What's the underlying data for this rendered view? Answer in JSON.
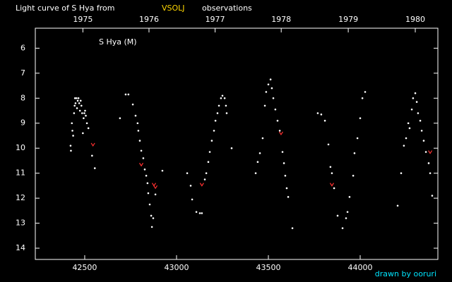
{
  "chart_data": {
    "type": "scatter",
    "title_prefix": "Light curve of S Hya from",
    "title_source": "VSOLJ",
    "title_suffix": "observations",
    "label": "S Hya (M)",
    "credit": "drawn by ooruri",
    "xlim": [
      42231,
      44423
    ],
    "ylim": [
      14.45,
      5.2
    ],
    "xticks": [
      42500,
      43000,
      43500,
      44000
    ],
    "yticks": [
      6,
      7,
      8,
      9,
      10,
      11,
      12,
      13,
      14
    ],
    "x2ticks": [
      {
        "value": 42490,
        "label": "1975"
      },
      {
        "value": 42850,
        "label": "1976"
      },
      {
        "value": 43210,
        "label": "1977"
      },
      {
        "value": 43570,
        "label": "1978"
      },
      {
        "value": 43935,
        "label": "1979"
      },
      {
        "value": 44300,
        "label": "1980"
      }
    ],
    "grid": false,
    "series": [
      {
        "color": "#ffffff",
        "marker": "dot",
        "x": [
          42423,
          42425,
          42430,
          42433,
          42437,
          42442,
          42445,
          42447,
          42450,
          42455,
          42458,
          42462,
          42466,
          42470,
          42474,
          42478,
          42482,
          42486,
          42490,
          42494,
          42498,
          42502,
          42506,
          42512,
          42520,
          42540,
          42555,
          42692,
          42723,
          42738,
          42762,
          42777,
          42788,
          42792,
          42800,
          42808,
          42819,
          42827,
          42835,
          42842,
          42846,
          42854,
          42862,
          42866,
          42873,
          42885,
          42923,
          43058,
          43077,
          43085,
          43108,
          43127,
          43138,
          43154,
          43162,
          43173,
          43181,
          43192,
          43204,
          43212,
          43223,
          43231,
          43242,
          43250,
          43262,
          43269,
          43273,
          43300,
          43431,
          43442,
          43454,
          43469,
          43481,
          43488,
          43500,
          43512,
          43519,
          43527,
          43538,
          43550,
          43562,
          43577,
          43585,
          43592,
          43600,
          43608,
          43631,
          43769,
          43788,
          43808,
          43827,
          43838,
          43846,
          43858,
          43877,
          43904,
          43923,
          43931,
          43942,
          43962,
          43969,
          43985,
          44000,
          44012,
          44027,
          44204,
          44223,
          44238,
          44250,
          44262,
          44269,
          44281,
          44288,
          44300,
          44308,
          44315,
          44327,
          44335,
          44346,
          44358,
          44373,
          44381,
          44392
        ],
        "values": [
          9.9,
          10.1,
          9.0,
          9.3,
          9.5,
          8.6,
          8.3,
          8.0,
          8.2,
          8.0,
          8.4,
          8.1,
          8.0,
          8.2,
          8.5,
          8.1,
          8.3,
          8.6,
          9.4,
          8.8,
          8.6,
          8.5,
          8.7,
          9.0,
          9.2,
          10.3,
          10.8,
          8.8,
          7.85,
          7.85,
          8.25,
          8.7,
          9.0,
          9.3,
          9.7,
          10.1,
          10.4,
          10.85,
          11.1,
          11.4,
          11.8,
          12.25,
          12.7,
          13.15,
          12.8,
          11.85,
          10.9,
          11.0,
          11.5,
          12.05,
          12.55,
          12.6,
          12.6,
          11.25,
          11.0,
          10.55,
          10.15,
          9.7,
          9.3,
          8.9,
          8.6,
          8.3,
          8.0,
          7.9,
          8.0,
          8.3,
          8.6,
          10.0,
          11.0,
          10.55,
          10.2,
          9.6,
          8.3,
          7.75,
          7.45,
          7.25,
          7.6,
          8.0,
          8.45,
          8.9,
          9.3,
          10.15,
          10.6,
          11.1,
          11.6,
          11.95,
          13.2,
          8.6,
          8.65,
          8.9,
          9.85,
          10.75,
          11.0,
          11.6,
          12.7,
          13.2,
          12.8,
          12.55,
          11.95,
          11.1,
          10.2,
          9.6,
          8.8,
          8.0,
          7.75,
          12.3,
          11.0,
          9.9,
          9.6,
          9.0,
          9.2,
          8.45,
          8.0,
          7.8,
          8.15,
          8.6,
          8.9,
          9.3,
          9.7,
          10.15,
          10.6,
          11.0,
          11.9
        ]
      },
      {
        "color": "#ff3030",
        "marker": "v",
        "x": [
          42545,
          42808,
          42877,
          42885,
          43138,
          43569,
          43846,
          44381
        ],
        "values": [
          9.85,
          10.65,
          11.45,
          11.55,
          11.45,
          9.4,
          11.45,
          10.15
        ]
      }
    ]
  }
}
